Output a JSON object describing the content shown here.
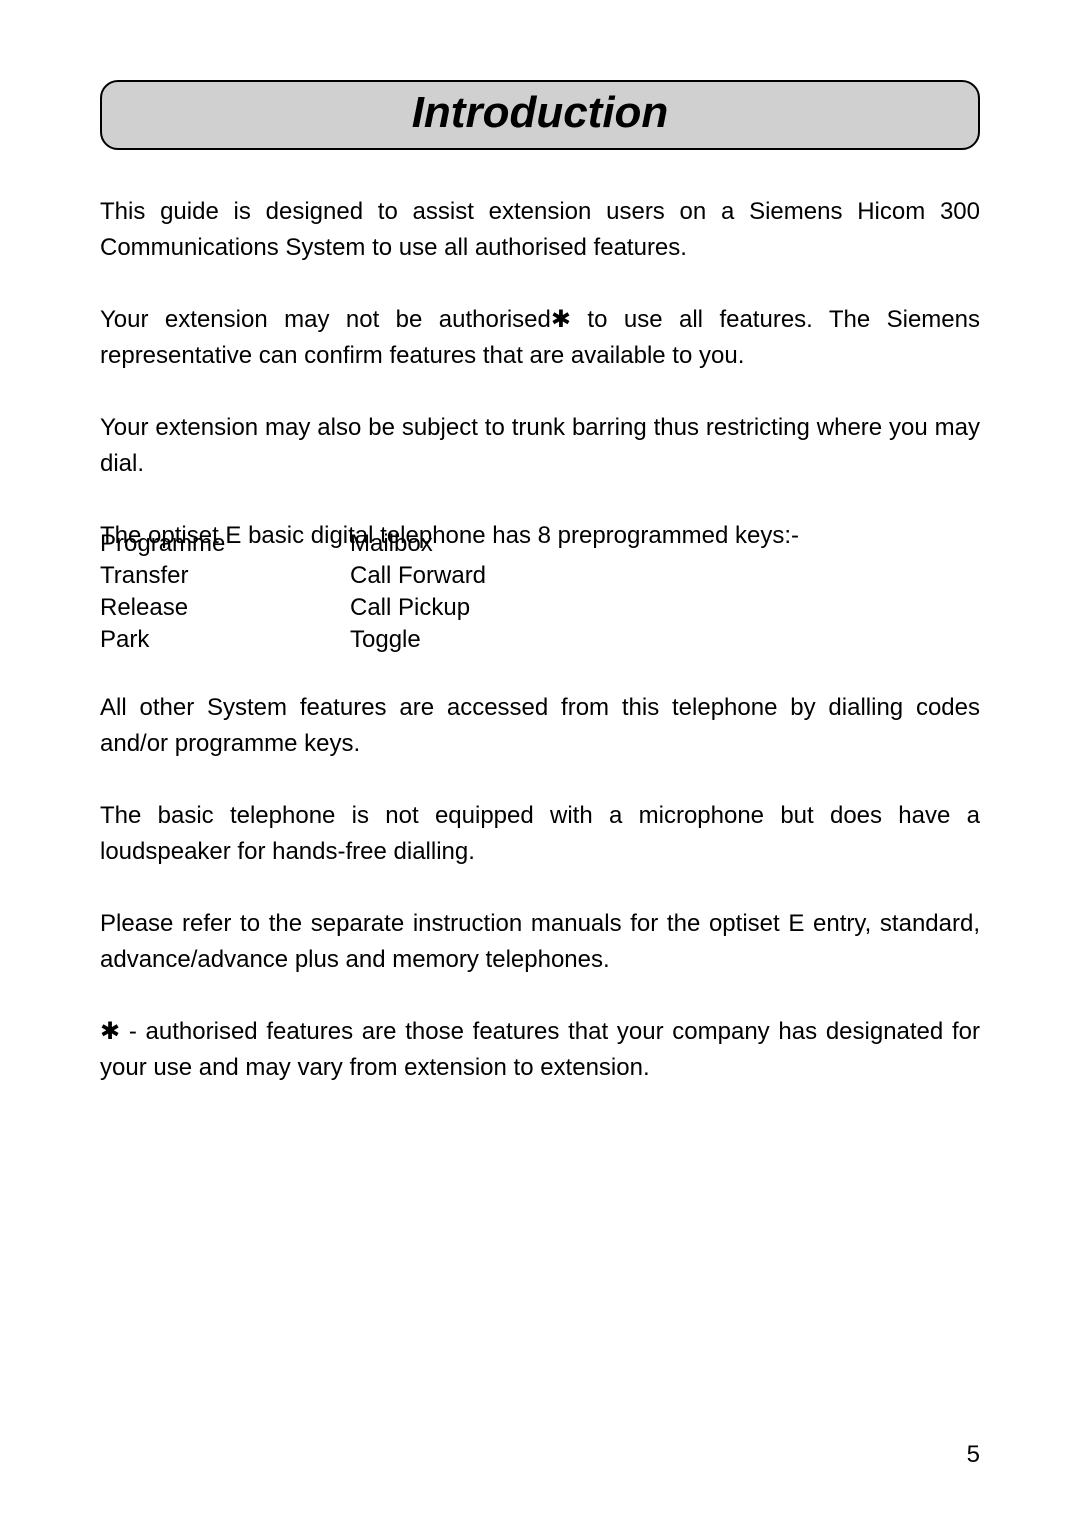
{
  "page": {
    "title": "Introduction",
    "pageNumber": "5"
  },
  "paragraphs": {
    "p1": "This guide is designed to assist extension users on a Siemens Hicom 300 Communications System to use all authorised features.",
    "p2a": "Your extension may not be authorised",
    "p2b": " to use all features. The Siemens representative can confirm features that are available to you.",
    "p3": "Your extension may also be subject to trunk barring thus restricting where you may dial.",
    "p4": "The optiset E basic digital telephone has 8 preprogrammed keys:-",
    "p5": "All other System features are accessed from this telephone by dialling codes and/or programme keys.",
    "p6": "The basic telephone is not equipped with a microphone but does have a loudspeaker for hands-free dialling.",
    "p7": "Please refer to the separate instruction manuals for the optiset E entry, standard, advance/advance plus and memory telephones.",
    "p8a": " - authorised features are those features that your company has designated for your use and may vary from extension to extension."
  },
  "keys": {
    "left": [
      "Programme",
      "Transfer",
      "Release",
      "Park"
    ],
    "right": [
      "Mailbox",
      "Call Forward",
      "Call Pickup",
      "Toggle"
    ]
  },
  "asterisk": "✱"
}
